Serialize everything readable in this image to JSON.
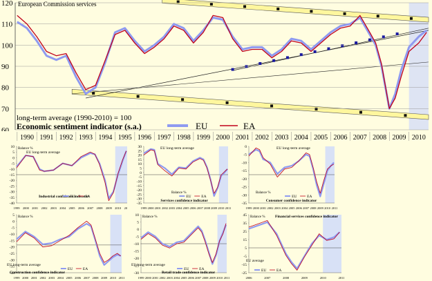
{
  "source": "European Commission services",
  "colors": {
    "eu": "#8f9af0",
    "ea": "#c0001a",
    "background": "#fffde0",
    "band": "#fff79e",
    "marker": "#1a1aa0",
    "recent_shade": "#c8d4ff"
  },
  "main_chart": {
    "title": "Economic sentiment indicator (s.a.)",
    "subtitle": "long-term average (1990-2010) = 100",
    "legend": {
      "eu": "EU",
      "ea": "EA"
    },
    "years": [
      "1990",
      "1991",
      "1992",
      "1993",
      "1994",
      "1995",
      "1996",
      "1997",
      "1998",
      "1999",
      "2000",
      "2001",
      "2002",
      "2003",
      "2004",
      "2005",
      "2006",
      "2007",
      "2008",
      "2009",
      "2010"
    ],
    "yticks": [
      "60",
      "70",
      "80",
      "90",
      "100",
      "110",
      "120"
    ]
  },
  "panels": [
    {
      "title": "Industrial confidence indicator",
      "unit": "Balance %",
      "avg_label": "EU long-term average",
      "legend": {
        "eu": "EU",
        "ea": "EA"
      },
      "years": [
        "1999",
        "2000",
        "2001",
        "2002",
        "2003",
        "2004",
        "2005",
        "2006",
        "2007",
        "2008",
        "2009",
        "2010",
        "2011"
      ],
      "yticks": [
        "10",
        "5",
        "0",
        "-5",
        "-10",
        "-15",
        "-20",
        "-25",
        "-30",
        "-35",
        "-40"
      ]
    },
    {
      "title": "Services confidence indicator",
      "unit": "Balance %",
      "avg_label": "EU long-term average",
      "legend": {
        "eu": "EU",
        "ea": "EA"
      },
      "years": [
        "1999",
        "2000",
        "2001",
        "2002",
        "2003",
        "2004",
        "2005",
        "2006",
        "2007",
        "2008",
        "2009",
        "2010",
        "2011"
      ],
      "yticks": [
        "30",
        "25",
        "20",
        "15",
        "10",
        "5",
        "0",
        "-5",
        "-10",
        "-15",
        "-20",
        "-25",
        "-30",
        "-35"
      ]
    },
    {
      "title": "Consumer confidence indicator",
      "unit": "Balance %",
      "avg_label": "EU long-term average",
      "legend": {
        "eu": "EU",
        "ea": "EA"
      },
      "years": [
        "1999",
        "2000",
        "2001",
        "2002",
        "2003",
        "2004",
        "2005",
        "2006",
        "2007",
        "2008",
        "2009",
        "2010",
        "2011"
      ],
      "yticks": [
        "0",
        "-5",
        "-10",
        "-15",
        "-20",
        "-25",
        "-30",
        "-35"
      ]
    },
    {
      "title": "Construction confidence indicator",
      "unit": "Balance %",
      "avg_label": "EU long-term average",
      "legend": {
        "eu": "EU",
        "ea": "EA"
      },
      "years": [
        "1999",
        "2000",
        "2001",
        "2002",
        "2003",
        "2004",
        "2005",
        "2006",
        "2007",
        "2008",
        "2009",
        "2010",
        "2011"
      ],
      "yticks": [
        "5",
        "0",
        "-5",
        "-10",
        "-15",
        "-20",
        "-25",
        "-30",
        "-35",
        "-40"
      ]
    },
    {
      "title": "Retail trade confidence indicator",
      "unit": "Balance %",
      "avg_label": "EU long-term average",
      "legend": {
        "eu": "EU",
        "ea": "EA"
      },
      "years": [
        "1999",
        "2000",
        "2001",
        "2002",
        "2003",
        "2004",
        "2005",
        "2006",
        "2007",
        "2008",
        "2009",
        "2010",
        "2011"
      ],
      "yticks": [
        "10",
        "5",
        "0",
        "-5",
        "-10",
        "-15",
        "-20",
        "-25",
        "-30"
      ]
    },
    {
      "title": "Financial services confidence indicator",
      "unit": "Balance %",
      "avg_label": "EU average",
      "legend": {
        "eu": "EU",
        "ea": "EA"
      },
      "years": [
        "2006",
        "2007",
        "2008",
        "2009",
        "2010",
        "2011"
      ],
      "yticks": [
        "45",
        "35",
        "25",
        "15",
        "5",
        "-5",
        "-15",
        "-25"
      ]
    }
  ],
  "chart_data": [
    {
      "type": "line",
      "title": "Economic sentiment indicator (s.a.)",
      "subtitle": "long-term average (1990-2010) = 100",
      "xlim": [
        1989.9,
        2011.0
      ],
      "ylim": [
        60,
        120
      ],
      "series": [
        {
          "name": "EU",
          "x": [
            1990,
            1990.5,
            1991,
            1991.5,
            1992,
            1992.5,
            1993,
            1993.5,
            1994,
            1994.5,
            1995,
            1995.5,
            1996,
            1996.5,
            1997,
            1997.5,
            1998,
            1998.5,
            1999,
            1999.5,
            2000,
            2000.5,
            2001,
            2001.5,
            2002,
            2002.5,
            2003,
            2003.5,
            2004,
            2004.5,
            2005,
            2005.5,
            2006,
            2006.5,
            2007,
            2007.5,
            2008,
            2008.3,
            2008.6,
            2009,
            2009.3,
            2009.6,
            2010,
            2010.5,
            2010.9
          ],
          "y": [
            111,
            108,
            102,
            95,
            93,
            95,
            85,
            77,
            80,
            92,
            106,
            108,
            102,
            97,
            100,
            104,
            110,
            108,
            102,
            107,
            113,
            112,
            104,
            98,
            99,
            99,
            95,
            98,
            103,
            102,
            98,
            102,
            106,
            109,
            110,
            113,
            105,
            100,
            90,
            70,
            77,
            88,
            99,
            104,
            107
          ]
        },
        {
          "name": "EA",
          "x": [
            1990,
            1990.5,
            1991,
            1991.5,
            1992,
            1992.5,
            1993,
            1993.5,
            1994,
            1994.5,
            1995,
            1995.5,
            1996,
            1996.5,
            1997,
            1997.5,
            1998,
            1998.5,
            1999,
            1999.5,
            2000,
            2000.5,
            2001,
            2001.5,
            2002,
            2002.5,
            2003,
            2003.5,
            2004,
            2004.5,
            2005,
            2005.5,
            2006,
            2006.5,
            2007,
            2007.5,
            2008,
            2008.3,
            2008.6,
            2009,
            2009.3,
            2009.6,
            2010,
            2010.5,
            2010.9
          ],
          "y": [
            114,
            110,
            104,
            97,
            95,
            96,
            87,
            79,
            81,
            93,
            105,
            107,
            101,
            96,
            99,
            103,
            109,
            107,
            101,
            106,
            114,
            113,
            103,
            97,
            98,
            98,
            94,
            97,
            102,
            101,
            97,
            101,
            105,
            108,
            109,
            114,
            106,
            101,
            91,
            70,
            75,
            85,
            97,
            101,
            106
          ]
        }
      ]
    },
    {
      "type": "line",
      "title": "Industrial confidence indicator",
      "ylabel": "Balance %",
      "xlim": [
        1999,
        2011
      ],
      "ylim": [
        -40,
        10
      ],
      "series": [
        {
          "name": "EU",
          "x": [
            1999,
            2000,
            2000.8,
            2001.5,
            2002,
            2003,
            2004,
            2005,
            2006,
            2007,
            2007.5,
            2008,
            2008.6,
            2009,
            2009.5,
            2010,
            2010.5,
            2010.9
          ],
          "y": [
            -8,
            2,
            1,
            -10,
            -12,
            -11,
            -5,
            -7,
            0,
            4,
            3,
            -5,
            -20,
            -36,
            -30,
            -15,
            -3,
            6
          ]
        },
        {
          "name": "EA",
          "x": [
            1999,
            2000,
            2000.8,
            2001.5,
            2002,
            2003,
            2004,
            2005,
            2006,
            2007,
            2007.5,
            2008,
            2008.6,
            2009,
            2009.5,
            2010,
            2010.5,
            2010.9
          ],
          "y": [
            -9,
            2,
            1,
            -11,
            -12,
            -11,
            -5,
            -7,
            1,
            5,
            3,
            -6,
            -22,
            -38,
            -31,
            -14,
            -2,
            6
          ]
        }
      ]
    },
    {
      "type": "line",
      "title": "Services confidence indicator",
      "ylabel": "Balance %",
      "xlim": [
        1999,
        2011
      ],
      "ylim": [
        -35,
        30
      ],
      "series": [
        {
          "name": "EU",
          "x": [
            1999,
            2000,
            2000.5,
            2001,
            2002,
            2003,
            2004,
            2005,
            2006,
            2007,
            2007.5,
            2008,
            2008.5,
            2009,
            2009.5,
            2010,
            2010.5,
            2010.9
          ],
          "y": [
            22,
            27,
            26,
            10,
            5,
            -2,
            6,
            5,
            13,
            17,
            15,
            6,
            -8,
            -27,
            -18,
            -4,
            0,
            4
          ]
        },
        {
          "name": "EA",
          "x": [
            1999,
            2000,
            2000.5,
            2001,
            2002,
            2003,
            2004,
            2005,
            2006,
            2007,
            2007.5,
            2008,
            2008.5,
            2009,
            2009.5,
            2010,
            2010.5,
            2010.9
          ],
          "y": [
            20,
            26,
            25,
            9,
            2,
            -4,
            5,
            4,
            12,
            16,
            14,
            5,
            -9,
            -24,
            -17,
            -3,
            1,
            4
          ]
        }
      ]
    },
    {
      "type": "line",
      "title": "Consumer confidence indicator",
      "ylabel": "Balance %",
      "xlim": [
        1999,
        2011
      ],
      "ylim": [
        -35,
        0
      ],
      "series": [
        {
          "name": "EU",
          "x": [
            1999,
            2000,
            2000.5,
            2001,
            2002,
            2003,
            2004,
            2005,
            2006,
            2007,
            2007.5,
            2008,
            2008.5,
            2009,
            2009.5,
            2010,
            2010.5,
            2010.9
          ],
          "y": [
            -5,
            -2,
            -3,
            -8,
            -10,
            -17,
            -13,
            -12,
            -9,
            -5,
            -6,
            -14,
            -24,
            -31,
            -23,
            -15,
            -12,
            -10
          ]
        },
        {
          "name": "EA",
          "x": [
            1999,
            2000,
            2000.5,
            2001,
            2002,
            2003,
            2004,
            2005,
            2006,
            2007,
            2007.5,
            2008,
            2008.5,
            2009,
            2009.5,
            2010,
            2010.5,
            2010.9
          ],
          "y": [
            -6,
            -1,
            -2,
            -7,
            -11,
            -19,
            -14,
            -13,
            -9,
            -4,
            -5,
            -13,
            -22,
            -29,
            -21,
            -14,
            -12,
            -11
          ]
        }
      ]
    },
    {
      "type": "line",
      "title": "Construction confidence indicator",
      "ylabel": "Balance %",
      "xlim": [
        1999,
        2011
      ],
      "ylim": [
        -40,
        5
      ],
      "series": [
        {
          "name": "EU",
          "x": [
            1999,
            2000,
            2001,
            2002,
            2003,
            2004,
            2005,
            2006,
            2007,
            2007.5,
            2008,
            2008.5,
            2009,
            2009.5,
            2010,
            2010.5,
            2010.9
          ],
          "y": [
            -14,
            -8,
            -12,
            -18,
            -17,
            -14,
            -12,
            -6,
            -2,
            -4,
            -15,
            -27,
            -34,
            -31,
            -28,
            -26,
            -27
          ]
        },
        {
          "name": "EA",
          "x": [
            1999,
            2000,
            2001,
            2002,
            2003,
            2004,
            2005,
            2006,
            2007,
            2007.5,
            2008,
            2008.5,
            2009,
            2009.5,
            2010,
            2010.5,
            2010.9
          ],
          "y": [
            -16,
            -9,
            -13,
            -20,
            -19,
            -15,
            -11,
            -5,
            0,
            -3,
            -14,
            -25,
            -32,
            -30,
            -27,
            -25,
            -27
          ]
        }
      ]
    },
    {
      "type": "line",
      "title": "Retail trade confidence indicator",
      "ylabel": "Balance %",
      "xlim": [
        1999,
        2011
      ],
      "ylim": [
        -30,
        10
      ],
      "series": [
        {
          "name": "EU",
          "x": [
            1999,
            2000,
            2001,
            2002,
            2003,
            2004,
            2005,
            2006,
            2007,
            2007.5,
            2008,
            2008.5,
            2009,
            2009.5,
            2010,
            2010.5,
            2010.9
          ],
          "y": [
            -6,
            -2,
            -5,
            -10,
            -12,
            -9,
            -8,
            -3,
            2,
            -1,
            -8,
            -16,
            -24,
            -18,
            -8,
            -2,
            3
          ]
        },
        {
          "name": "EA",
          "x": [
            1999,
            2000,
            2001,
            2002,
            2003,
            2004,
            2005,
            2006,
            2007,
            2007.5,
            2008,
            2008.5,
            2009,
            2009.5,
            2010,
            2010.5,
            2010.9
          ],
          "y": [
            -7,
            -3,
            -6,
            -11,
            -13,
            -10,
            -9,
            -4,
            1,
            -2,
            -9,
            -17,
            -23,
            -17,
            -8,
            -3,
            4
          ]
        }
      ]
    },
    {
      "type": "line",
      "title": "Financial services confidence indicator",
      "ylabel": "Balance %",
      "xlim": [
        2006,
        2011
      ],
      "ylim": [
        -25,
        45
      ],
      "series": [
        {
          "name": "EU",
          "x": [
            2006,
            2006.5,
            2007,
            2007.5,
            2008,
            2008.3,
            2008.6,
            2009,
            2009.4,
            2009.8,
            2010.2,
            2010.6,
            2010.9
          ],
          "y": [
            28,
            32,
            36,
            22,
            -2,
            -12,
            -20,
            -5,
            10,
            20,
            15,
            18,
            24
          ]
        },
        {
          "name": "EA",
          "x": [
            2006,
            2006.5,
            2007,
            2007.5,
            2008,
            2008.3,
            2008.6,
            2009,
            2009.4,
            2009.8,
            2010.2,
            2010.6,
            2010.9
          ],
          "y": [
            30,
            34,
            38,
            20,
            -4,
            -14,
            -22,
            -6,
            8,
            22,
            14,
            16,
            24
          ]
        }
      ]
    }
  ]
}
